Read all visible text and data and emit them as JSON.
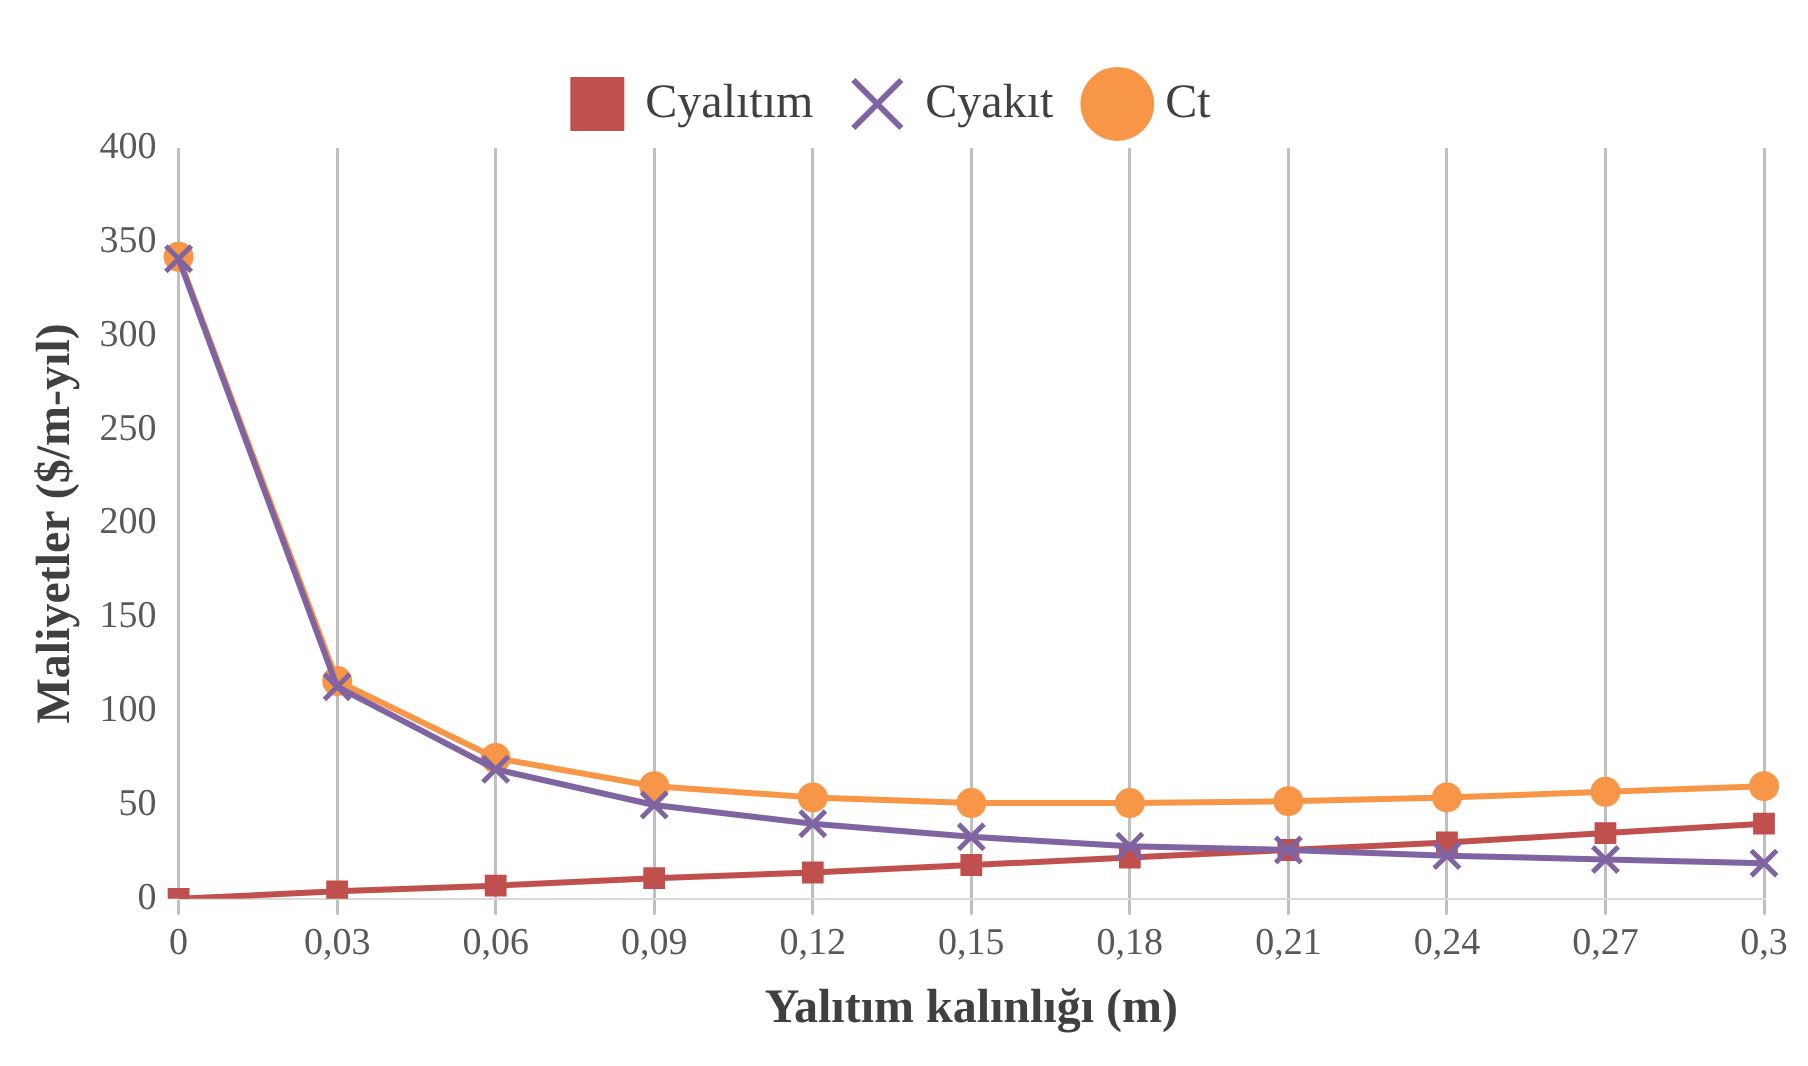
{
  "chart_data": {
    "type": "line",
    "xlabel": "Yalıtım kalınlığı (m)",
    "ylabel": "Maliyetler ($/m-yıl)",
    "categories": [
      "0",
      "0,03",
      "0,06",
      "0,09",
      "0,12",
      "0,15",
      "0,18",
      "0,21",
      "0,24",
      "0,27",
      "0,3"
    ],
    "series": [
      {
        "name": "Cyalıtım",
        "color": "#c0504d",
        "marker": "square",
        "values": [
          0,
          4,
          7,
          11,
          14,
          18,
          22,
          26,
          30,
          35,
          40
        ]
      },
      {
        "name": "Cyakıt",
        "color": "#8064a2",
        "marker": "cross",
        "values": [
          341,
          113,
          69,
          50,
          40,
          33,
          28,
          26,
          23,
          21,
          19
        ]
      },
      {
        "name": "Ct",
        "color": "#f79646",
        "marker": "circle",
        "values": [
          342,
          116,
          75,
          60,
          54,
          51,
          51,
          52,
          54,
          57,
          60
        ]
      }
    ],
    "ylim": [
      0,
      400
    ],
    "yticks": [
      0,
      50,
      100,
      150,
      200,
      250,
      300,
      350,
      400
    ],
    "grid": "x",
    "legend": "top"
  }
}
